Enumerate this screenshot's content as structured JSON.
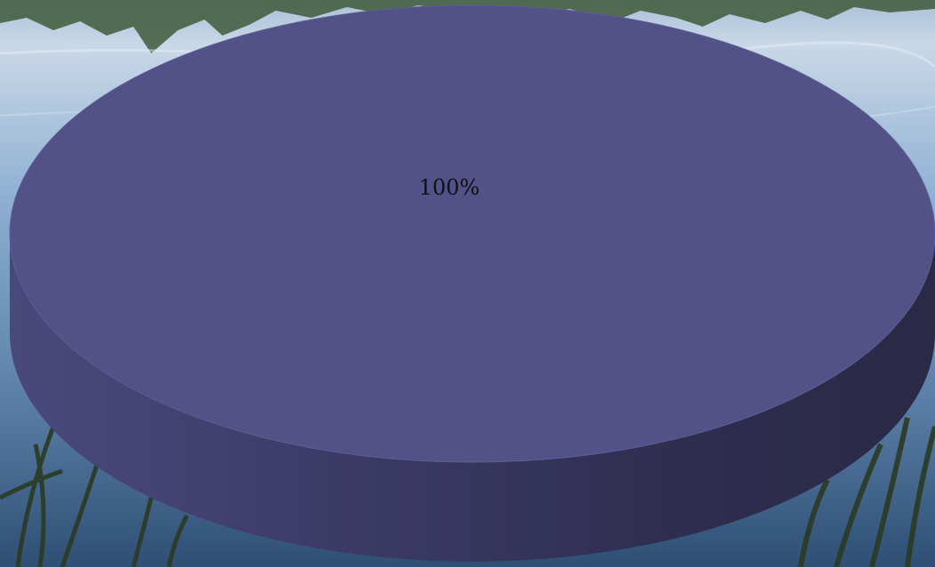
{
  "colors": {
    "sky_top": "#c9d8e8",
    "water_mid": "#5b7fa8",
    "water_deep": "#2f4f74",
    "shoreline": "#3f5a3a",
    "reeds": "#2c3a22",
    "slice_top": "#525188",
    "slice_side_light": "#4a497c",
    "slice_side_dark": "#2a2946",
    "label": "#111111"
  },
  "chart_data": {
    "type": "pie",
    "style": "3d",
    "title": "",
    "slices": [
      {
        "label": "100%",
        "value": 100
      }
    ],
    "legend": "none"
  }
}
